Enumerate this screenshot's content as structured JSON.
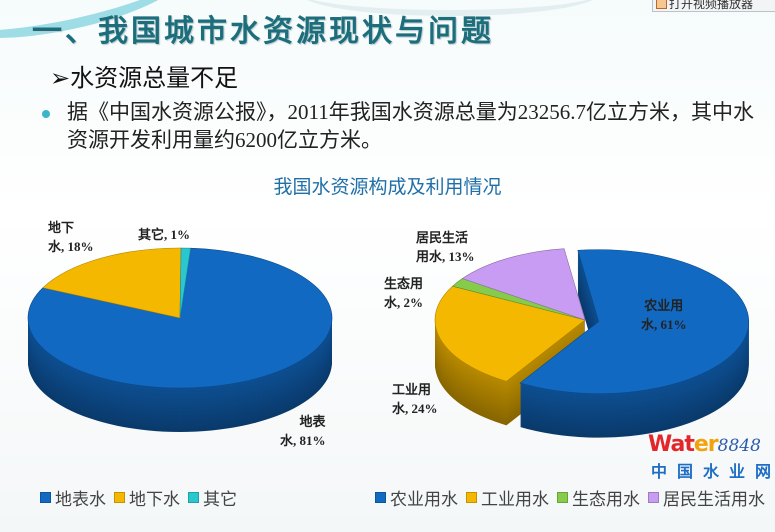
{
  "toolbar": {
    "player_label": "打开视频播放器"
  },
  "heading": "一、我国城市水资源现状与问题",
  "subheading": "➢水资源总量不足",
  "paragraph": "据《中国水资源公报》，2011年我国水资源总量为23256.7亿立方米，其中水资源开发利用量约6200亿立方米。",
  "chart_title": "我国水资源构成及利用情况",
  "chart_data": [
    {
      "type": "pie",
      "slices": [
        {
          "name": "地表水",
          "value": 81,
          "label": "地表\n水, 81%",
          "color": "#1269c2"
        },
        {
          "name": "地下水",
          "value": 18,
          "label": "地下\n水, 18%",
          "color": "#f5b800"
        },
        {
          "name": "其它",
          "value": 1,
          "label": "其它, 1%",
          "color": "#2bc7cf"
        }
      ]
    },
    {
      "type": "pie",
      "slices": [
        {
          "name": "农业用水",
          "value": 61,
          "label": "农业用\n水, 61%",
          "color": "#1269c2",
          "exploded": true
        },
        {
          "name": "工业用水",
          "value": 24,
          "label": "工业用\n水, 24%",
          "color": "#f5b800"
        },
        {
          "name": "生态用水",
          "value": 2,
          "label": "生态用\n水, 2%",
          "color": "#86cc4a"
        },
        {
          "name": "居民生活用水",
          "value": 13,
          "label": "居民生活\n用水, 13%",
          "color": "#c79cf2"
        }
      ]
    }
  ],
  "legend_left": [
    "地表水",
    "地下水",
    "其它"
  ],
  "legend_right": [
    "农业用水",
    "工业用水",
    "生态用水",
    "居民生活用水"
  ],
  "watermark": {
    "brand_a": "Wat",
    "brand_b": "er",
    "brand_c": "8848",
    "brand_cn": "中国水业网"
  }
}
